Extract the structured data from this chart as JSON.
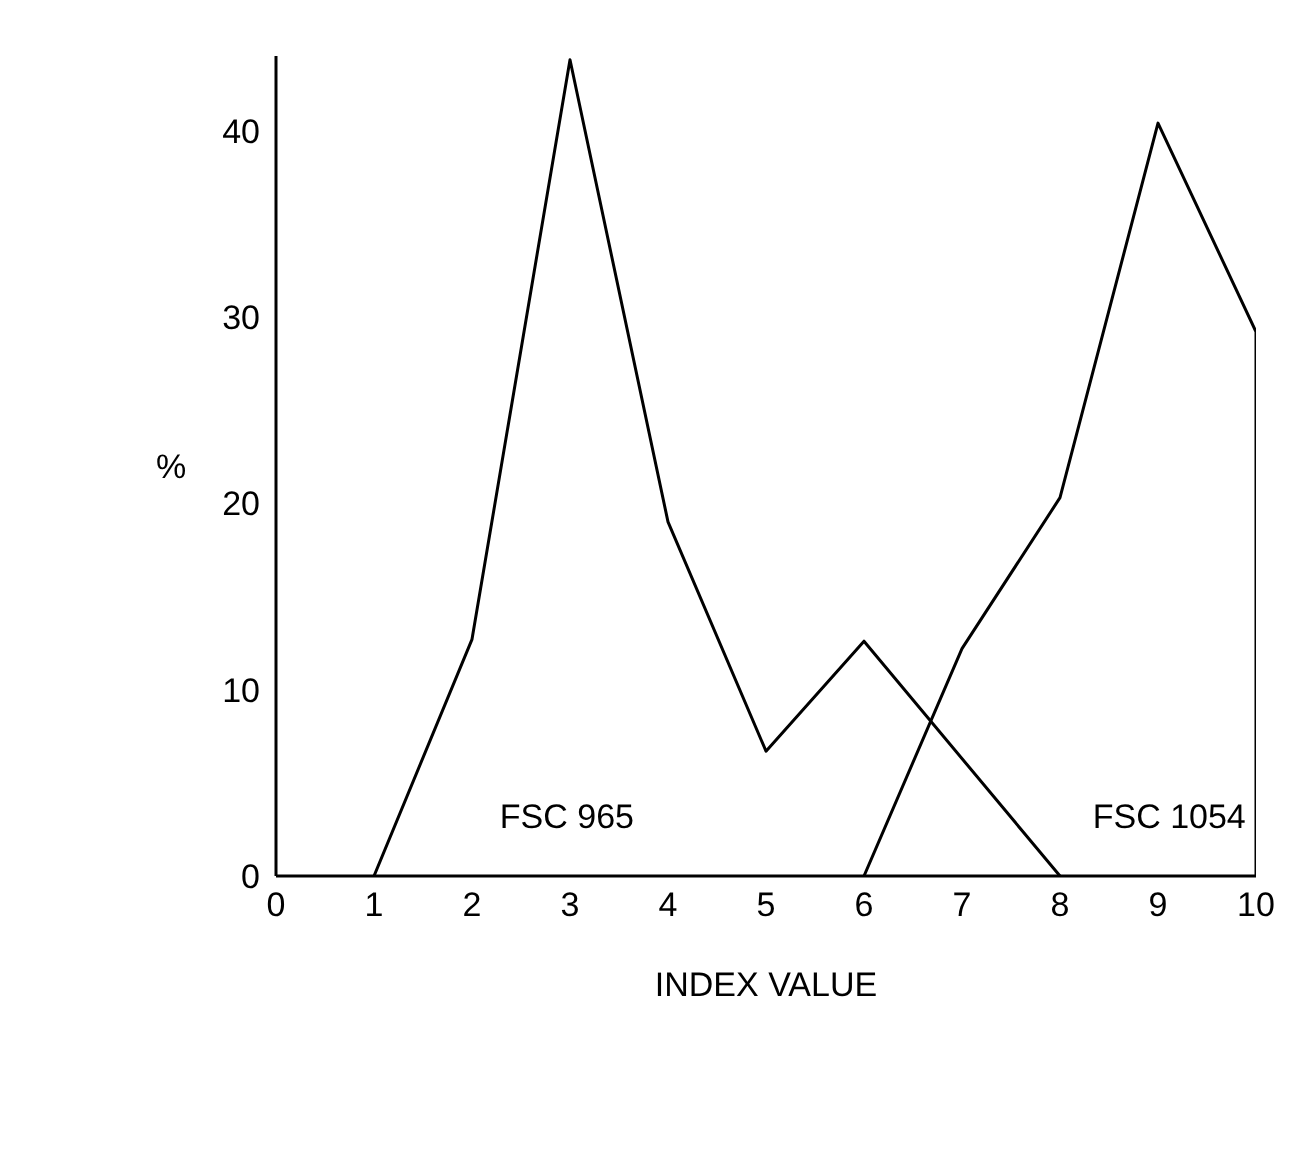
{
  "chart_data": {
    "type": "line",
    "xlabel": "INDEX VALUE",
    "ylabel": "%",
    "series": [
      {
        "name": "FSC 965",
        "color": "#000000",
        "x": [
          1,
          2,
          3,
          4,
          5,
          6,
          8
        ],
        "values": [
          0,
          12.7,
          43.8,
          19,
          6.7,
          12.6,
          0
        ]
      },
      {
        "name": "FSC 1054",
        "color": "#000000",
        "x": [
          6,
          7,
          8,
          9,
          10,
          10
        ],
        "values": [
          0,
          12.2,
          20.3,
          40.4,
          29.2,
          0
        ]
      }
    ],
    "xlim": [
      0,
      10
    ],
    "xticks": [
      0,
      1,
      2,
      3,
      4,
      5,
      6,
      7,
      8,
      9,
      10
    ],
    "ylim": [
      0,
      44
    ],
    "yticks": [
      0,
      10,
      20,
      30,
      40
    ],
    "grid": false,
    "legend": false,
    "marker": "none",
    "line_style": "solid"
  }
}
